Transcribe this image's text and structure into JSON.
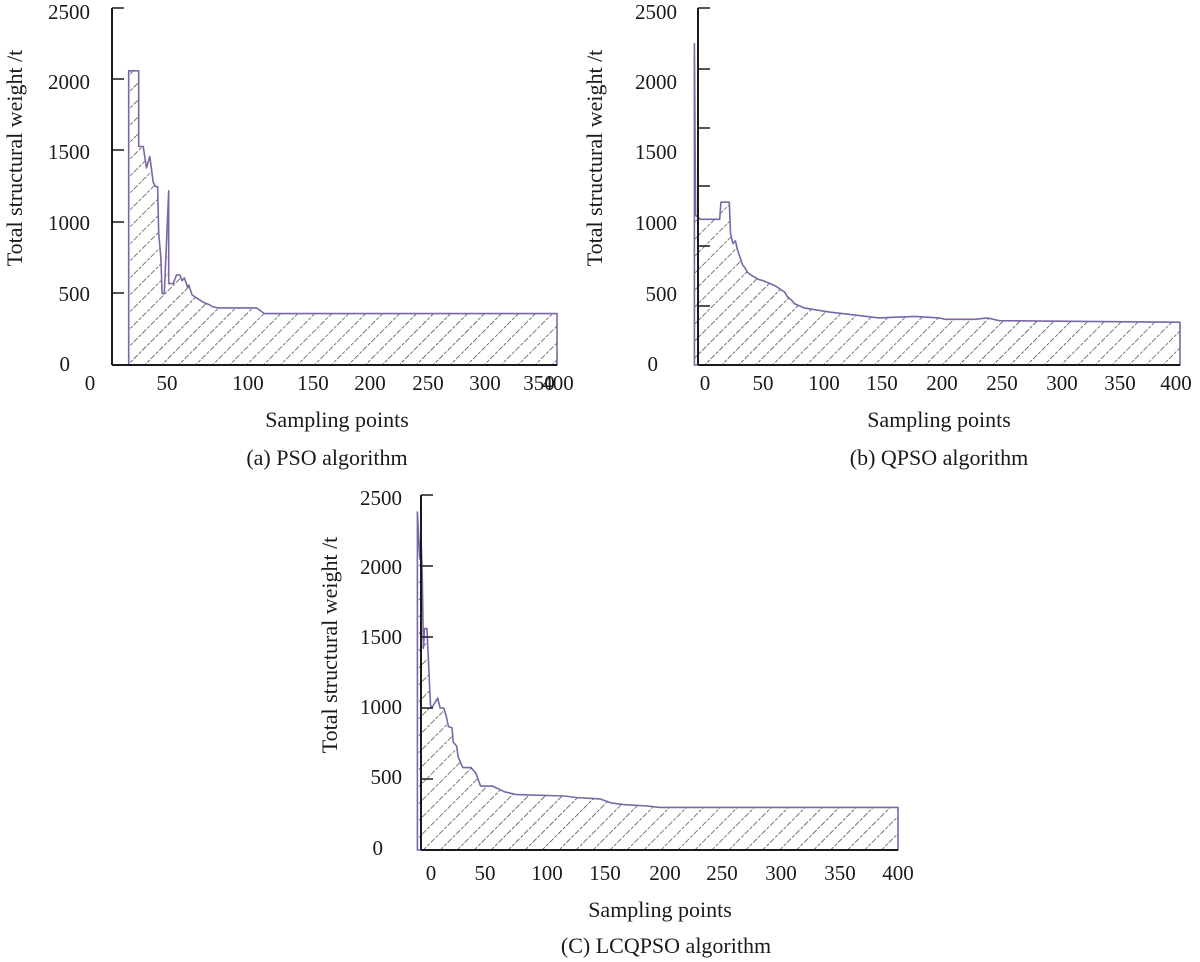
{
  "chart_data": [
    {
      "type": "area",
      "caption": "(a) PSO algorithm",
      "xlabel": "Sampling points",
      "ylabel": "Total structural weight /t",
      "xlim": [
        0,
        400
      ],
      "ylim": [
        0,
        2500
      ],
      "x_ticks": [
        0,
        50,
        100,
        150,
        200,
        250,
        300,
        350,
        400
      ],
      "y_ticks": [
        0,
        500,
        1000,
        1500,
        2000,
        2500
      ],
      "series": [
        {
          "name": "PSO",
          "x": [
            15,
            15,
            24,
            24,
            28,
            31,
            34,
            37,
            39,
            41,
            42,
            44,
            45,
            47,
            51,
            51,
            55,
            58,
            61,
            63,
            65,
            66,
            68,
            69,
            72,
            76,
            78,
            82,
            85,
            88,
            90,
            95,
            100,
            130,
            137,
            400
          ],
          "y": [
            0,
            2060,
            2060,
            1530,
            1530,
            1380,
            1460,
            1280,
            1250,
            1250,
            920,
            750,
            500,
            500,
            1220,
            570,
            570,
            630,
            630,
            590,
            610,
            590,
            540,
            560,
            490,
            470,
            460,
            440,
            430,
            420,
            410,
            400,
            400,
            400,
            360,
            360
          ]
        }
      ]
    },
    {
      "type": "area",
      "caption": "(b) QPSO algorithm",
      "xlabel": "Sampling points",
      "ylabel": "Total structural weight /t",
      "xlim": [
        0,
        400
      ],
      "ylim": [
        0,
        2500
      ],
      "x_ticks": [
        0,
        50,
        100,
        150,
        200,
        250,
        300,
        350,
        400
      ],
      "y_ticks": [
        0,
        500,
        1000,
        1500,
        2000,
        2500
      ],
      "series": [
        {
          "name": "QPSO",
          "x": [
            -3,
            -3,
            -2,
            2,
            7,
            18,
            19,
            26,
            27,
            29,
            31,
            33,
            35,
            37,
            39,
            41,
            44,
            50,
            54,
            60,
            65,
            70,
            72,
            74,
            78,
            80,
            88,
            95,
            102,
            110,
            120,
            150,
            180,
            200,
            205,
            230,
            240,
            250,
            400
          ],
          "y": [
            0,
            2250,
            1050,
            1020,
            1020,
            1020,
            1140,
            1140,
            920,
            850,
            870,
            800,
            750,
            700,
            680,
            650,
            630,
            600,
            590,
            570,
            550,
            520,
            510,
            480,
            450,
            430,
            400,
            390,
            380,
            370,
            360,
            330,
            340,
            330,
            320,
            320,
            330,
            310,
            300
          ]
        }
      ]
    },
    {
      "type": "area",
      "caption": "(C) LCQPSO algorithm",
      "xlabel": "Sampling points",
      "ylabel": "Total structural weight /t",
      "xlim": [
        0,
        400
      ],
      "ylim": [
        0,
        2500
      ],
      "x_ticks": [
        0,
        50,
        100,
        150,
        200,
        250,
        300,
        350,
        400
      ],
      "y_ticks": [
        0,
        500,
        1000,
        1500,
        2000,
        2500
      ],
      "series": [
        {
          "name": "LCQPSO",
          "x": [
            -3,
            -3,
            -1,
            0,
            1,
            2,
            3,
            5,
            7,
            8,
            9,
            14,
            16,
            19,
            21,
            23,
            26,
            27,
            30,
            31,
            35,
            36,
            42,
            46,
            50,
            60,
            70,
            80,
            120,
            130,
            150,
            160,
            170,
            190,
            200,
            400
          ],
          "y": [
            0,
            2380,
            2050,
            2200,
            1960,
            1420,
            1560,
            1560,
            1200,
            1020,
            1000,
            1070,
            1000,
            1000,
            950,
            870,
            860,
            760,
            730,
            660,
            580,
            580,
            580,
            540,
            450,
            450,
            410,
            390,
            380,
            370,
            360,
            330,
            320,
            310,
            300,
            300
          ]
        }
      ]
    }
  ]
}
